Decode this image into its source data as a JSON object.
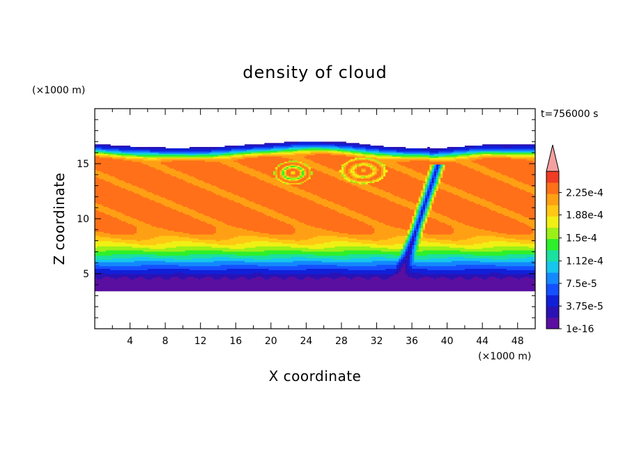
{
  "chart_data": {
    "type": "heatmap",
    "title": "density of cloud",
    "xlabel": "X coordinate",
    "ylabel": "Z coordinate",
    "x_unit": "(×1000 m)",
    "y_unit": "(×1000 m)",
    "time_label": "t=756000 s",
    "xlim": [
      0,
      50
    ],
    "ylim": [
      0,
      20
    ],
    "x_ticks": [
      4,
      8,
      12,
      16,
      20,
      24,
      28,
      32,
      36,
      40,
      44,
      48
    ],
    "y_ticks": [
      5,
      10,
      15
    ],
    "colorbar": {
      "tick_labels": [
        "1e-16",
        "3.75e-5",
        "7.5e-5",
        "1.12e-4",
        "1.5e-4",
        "1.88e-4",
        "2.25e-4"
      ],
      "tick_values": [
        0,
        3.75e-05,
        7.5e-05,
        0.000112,
        0.00015,
        0.000188,
        0.000225
      ],
      "levels": 14,
      "max_value": 0.00026,
      "overflow_arrow": true,
      "colors": [
        "#5a0fa0",
        "#2a12b4",
        "#1020d8",
        "#1450ff",
        "#1488ff",
        "#16c6ec",
        "#1ae0a0",
        "#2ef02a",
        "#9cf018",
        "#f0f014",
        "#ffc814",
        "#ffa014",
        "#ff7018",
        "#f03c24"
      ],
      "overflow_color": "#f4a0a0"
    },
    "field": {
      "cloud_base_km": 3.5,
      "cloud_top_km": 16.8,
      "core_value": 0.00023
    }
  }
}
